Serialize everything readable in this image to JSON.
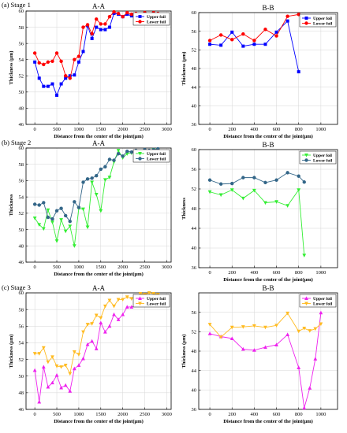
{
  "chart_data": [
    {
      "type": "line",
      "id": "s1a",
      "stage_label": "(a)  Stage 1",
      "title": "A-A",
      "xlabel": "Distance from the center of the joint(μm)",
      "ylabel": "Thickness (μm)",
      "xlim": [
        -200,
        3100
      ],
      "ylim": [
        46,
        60
      ],
      "xticks": [
        0,
        500,
        1000,
        1500,
        2000,
        2500,
        3000
      ],
      "yticks": [
        46,
        48,
        50,
        52,
        54,
        56,
        58,
        60
      ],
      "legend_position": "top-right",
      "series": [
        {
          "name": "Upper foil",
          "color": "#0000ff",
          "marker": "square",
          "x": [
            0,
            100,
            200,
            300,
            400,
            500,
            600,
            700,
            800,
            900,
            1000,
            1100,
            1200,
            1300,
            1400,
            1500,
            1600,
            1700,
            1800,
            1900,
            2000,
            2100,
            2200,
            2300,
            2400,
            2500,
            2600,
            2700,
            2800
          ],
          "y": [
            53.7,
            51.7,
            50.7,
            50.7,
            51.0,
            49.6,
            51.0,
            51.7,
            52.0,
            52.1,
            53.7,
            55.0,
            58.2,
            56.6,
            58.0,
            57.7,
            57.7,
            58.0,
            59.7,
            59.6,
            59.3,
            59.6,
            59.4,
            59.6,
            59.2,
            59.6,
            59.5,
            59.6,
            59.4
          ]
        },
        {
          "name": "Lower foil",
          "color": "#ff0000",
          "marker": "circle",
          "x": [
            0,
            100,
            200,
            300,
            400,
            500,
            600,
            700,
            800,
            900,
            1000,
            1100,
            1200,
            1300,
            1400,
            1500,
            1600,
            1700,
            1800,
            1900,
            2000,
            2100,
            2200,
            2300,
            2400,
            2500,
            2600,
            2700,
            2800
          ],
          "y": [
            54.8,
            53.6,
            53.4,
            53.7,
            53.8,
            54.8,
            53.8,
            52.0,
            51.7,
            54.0,
            54.4,
            58.0,
            58.3,
            57.2,
            59.0,
            58.4,
            58.4,
            59.3,
            59.9,
            59.7,
            59.3,
            59.8,
            59.6,
            59.7,
            59.4,
            59.8,
            59.6,
            59.8,
            59.7
          ]
        }
      ]
    },
    {
      "type": "line",
      "id": "s1b",
      "stage_label": "",
      "title": "B-B",
      "xlabel": "Distance from the center of the joint(μm)",
      "ylabel": "Thickness (μm)",
      "xlim": [
        -100,
        1150
      ],
      "ylim": [
        36,
        60
      ],
      "xticks": [
        0,
        200,
        400,
        600,
        800,
        1000
      ],
      "yticks": [
        36,
        40,
        44,
        48,
        52,
        56,
        60
      ],
      "legend_position": "top-right",
      "series": [
        {
          "name": "Upper foil",
          "color": "#0000ff",
          "marker": "square",
          "x": [
            0,
            100,
            200,
            300,
            400,
            500,
            600,
            700,
            800
          ],
          "y": [
            53.2,
            53.0,
            55.8,
            52.8,
            53.2,
            53.2,
            55.8,
            58.2,
            47.3
          ]
        },
        {
          "name": "Lower foil",
          "color": "#ff0000",
          "marker": "circle",
          "x": [
            0,
            100,
            200,
            300,
            400,
            500,
            600,
            700,
            800
          ],
          "y": [
            54.0,
            55.2,
            54.2,
            55.4,
            54.0,
            56.4,
            55.0,
            59.2,
            59.6
          ]
        }
      ]
    },
    {
      "type": "line",
      "id": "s2a",
      "stage_label": "(b)  Stage 2",
      "title": "A-A",
      "xlabel": "Distance from the center of the joint(μm)",
      "ylabel": "Thickness",
      "xlim": [
        -200,
        3100
      ],
      "ylim": [
        46,
        60
      ],
      "xticks": [
        0,
        500,
        1000,
        1500,
        2000,
        2500,
        3000
      ],
      "yticks": [
        46,
        48,
        50,
        52,
        54,
        56,
        58,
        60
      ],
      "legend_position": "top-right",
      "series": [
        {
          "name": "Upper foil",
          "color": "#33ee33",
          "marker": "triangle-down",
          "x": [
            0,
            100,
            200,
            300,
            400,
            500,
            600,
            700,
            800,
            900,
            1000,
            1100,
            1200,
            1300,
            1400,
            1500,
            1600,
            1700,
            1800,
            1900,
            2000,
            2100,
            2200,
            2300,
            2400,
            2500,
            2600,
            2700,
            2800
          ],
          "y": [
            51.4,
            50.6,
            50.1,
            52.4,
            50.9,
            48.6,
            51.2,
            49.8,
            50.4,
            48.0,
            52.6,
            52.5,
            50.3,
            55.8,
            54.3,
            52.3,
            56.1,
            56.4,
            58.3,
            59.7,
            58.8,
            59.3,
            59.4,
            59.6,
            59.5,
            59.5,
            59.6,
            59.8,
            59.6
          ]
        },
        {
          "name": "Lower foil",
          "color": "#336688",
          "marker": "circle",
          "x": [
            0,
            100,
            200,
            300,
            400,
            500,
            600,
            700,
            800,
            900,
            1000,
            1100,
            1200,
            1300,
            1400,
            1500,
            1600,
            1700,
            1800,
            1900,
            2000,
            2100,
            2200,
            2300,
            2400,
            2500,
            2600,
            2700,
            2800
          ],
          "y": [
            53.1,
            53.0,
            53.3,
            51.5,
            51.3,
            52.3,
            52.6,
            51.7,
            51.0,
            53.4,
            52.7,
            55.8,
            56.2,
            56.3,
            56.6,
            57.4,
            57.7,
            58.6,
            58.5,
            59.3,
            59.0,
            59.6,
            59.5,
            59.7,
            59.5,
            59.8,
            59.7,
            59.8,
            59.9
          ]
        }
      ]
    },
    {
      "type": "line",
      "id": "s2b",
      "stage_label": "",
      "title": "B-B",
      "xlabel": "Distance from the center of the joint(μm)",
      "ylabel": "Thickness",
      "xlim": [
        -100,
        1150
      ],
      "ylim": [
        36,
        60
      ],
      "xticks": [
        0,
        200,
        400,
        600,
        800,
        1000
      ],
      "yticks": [
        36,
        40,
        44,
        48,
        52,
        56,
        60
      ],
      "legend_position": "top-right",
      "series": [
        {
          "name": "Upper foil",
          "color": "#33ee33",
          "marker": "triangle-down",
          "x": [
            0,
            100,
            200,
            300,
            400,
            500,
            600,
            700,
            800,
            850
          ],
          "y": [
            51.4,
            50.8,
            51.8,
            50.1,
            51.7,
            49.2,
            49.4,
            48.6,
            51.8,
            38.5
          ]
        },
        {
          "name": "Lower foil",
          "color": "#336688",
          "marker": "circle",
          "x": [
            0,
            100,
            200,
            300,
            400,
            500,
            600,
            700,
            800,
            850
          ],
          "y": [
            53.8,
            53.0,
            53.1,
            54.3,
            54.3,
            53.3,
            53.8,
            55.3,
            54.6,
            53.4
          ]
        }
      ]
    },
    {
      "type": "line",
      "id": "s3a",
      "stage_label": "(c)  Stage 3",
      "title": "A-A",
      "xlabel": "Distance from the center of the joint(μm)",
      "ylabel": "Thickness (μm)",
      "xlim": [
        -200,
        3100
      ],
      "ylim": [
        46,
        60
      ],
      "xticks": [
        0,
        500,
        1000,
        1500,
        2000,
        2500,
        3000
      ],
      "yticks": [
        46,
        48,
        50,
        52,
        54,
        56,
        58,
        60
      ],
      "legend_position": "top-right",
      "series": [
        {
          "name": "Upper foil",
          "color": "#ee22ee",
          "marker": "triangle-up",
          "x": [
            0,
            100,
            200,
            300,
            400,
            500,
            600,
            700,
            800,
            900,
            1000,
            1100,
            1200,
            1300,
            1400,
            1500,
            1600,
            1700,
            1800,
            1900,
            2000,
            2100,
            2200,
            2300,
            2400,
            2500,
            2600,
            2700,
            2800
          ],
          "y": [
            50.7,
            46.9,
            51.1,
            48.7,
            49.2,
            50.1,
            48.6,
            48.9,
            48.2,
            50.9,
            51.3,
            52.1,
            53.8,
            54.2,
            53.3,
            56.4,
            55.3,
            56.0,
            57.4,
            56.8,
            57.4,
            58.3,
            58.3,
            58.5,
            58.9,
            58.8,
            59.0,
            59.4,
            59.6
          ]
        },
        {
          "name": "Lower foil",
          "color": "#ffbb22",
          "marker": "triangle-down",
          "x": [
            0,
            100,
            200,
            300,
            400,
            500,
            600,
            700,
            800,
            900,
            1000,
            1100,
            1200,
            1300,
            1400,
            1500,
            1600,
            1700,
            1800,
            1900,
            2000,
            2100,
            2200,
            2300,
            2400,
            2500,
            2600,
            2700,
            2800
          ],
          "y": [
            52.7,
            52.7,
            53.4,
            51.7,
            52.3,
            51.2,
            51.1,
            51.3,
            50.3,
            52.9,
            52.6,
            55.3,
            56.2,
            56.3,
            57.3,
            57.0,
            58.4,
            59.1,
            58.4,
            59.2,
            59.2,
            59.5,
            59.3,
            59.6,
            59.9,
            59.8,
            60.0,
            59.9,
            59.8
          ]
        }
      ]
    },
    {
      "type": "line",
      "id": "s3b",
      "stage_label": "",
      "title": "B-B",
      "xlabel": "Distance from the center of the joint(μm)",
      "ylabel": "Thickness (μm)",
      "xlim": [
        -100,
        1150
      ],
      "ylim": [
        36,
        60
      ],
      "xticks": [
        0,
        200,
        400,
        600,
        800,
        1000
      ],
      "yticks": [
        36,
        40,
        44,
        48,
        52,
        56
      ],
      "legend_position": "top-right",
      "series": [
        {
          "name": "Upper foil",
          "color": "#ee22ee",
          "marker": "triangle-up",
          "x": [
            0,
            100,
            200,
            300,
            400,
            500,
            600,
            700,
            800,
            850,
            900,
            950,
            1000
          ],
          "y": [
            51.6,
            51.0,
            50.6,
            48.4,
            48.2,
            48.8,
            49.3,
            51.4,
            44.6,
            36.3,
            40.4,
            46.4,
            55.9
          ]
        },
        {
          "name": "Lower foil",
          "color": "#ffbb22",
          "marker": "triangle-down",
          "x": [
            0,
            100,
            200,
            300,
            400,
            500,
            600,
            700,
            800,
            850,
            900,
            950,
            1000
          ],
          "y": [
            53.5,
            50.9,
            52.9,
            53.0,
            53.2,
            52.9,
            53.3,
            55.8,
            52.1,
            52.7,
            52.2,
            52.6,
            53.6
          ]
        }
      ]
    }
  ]
}
